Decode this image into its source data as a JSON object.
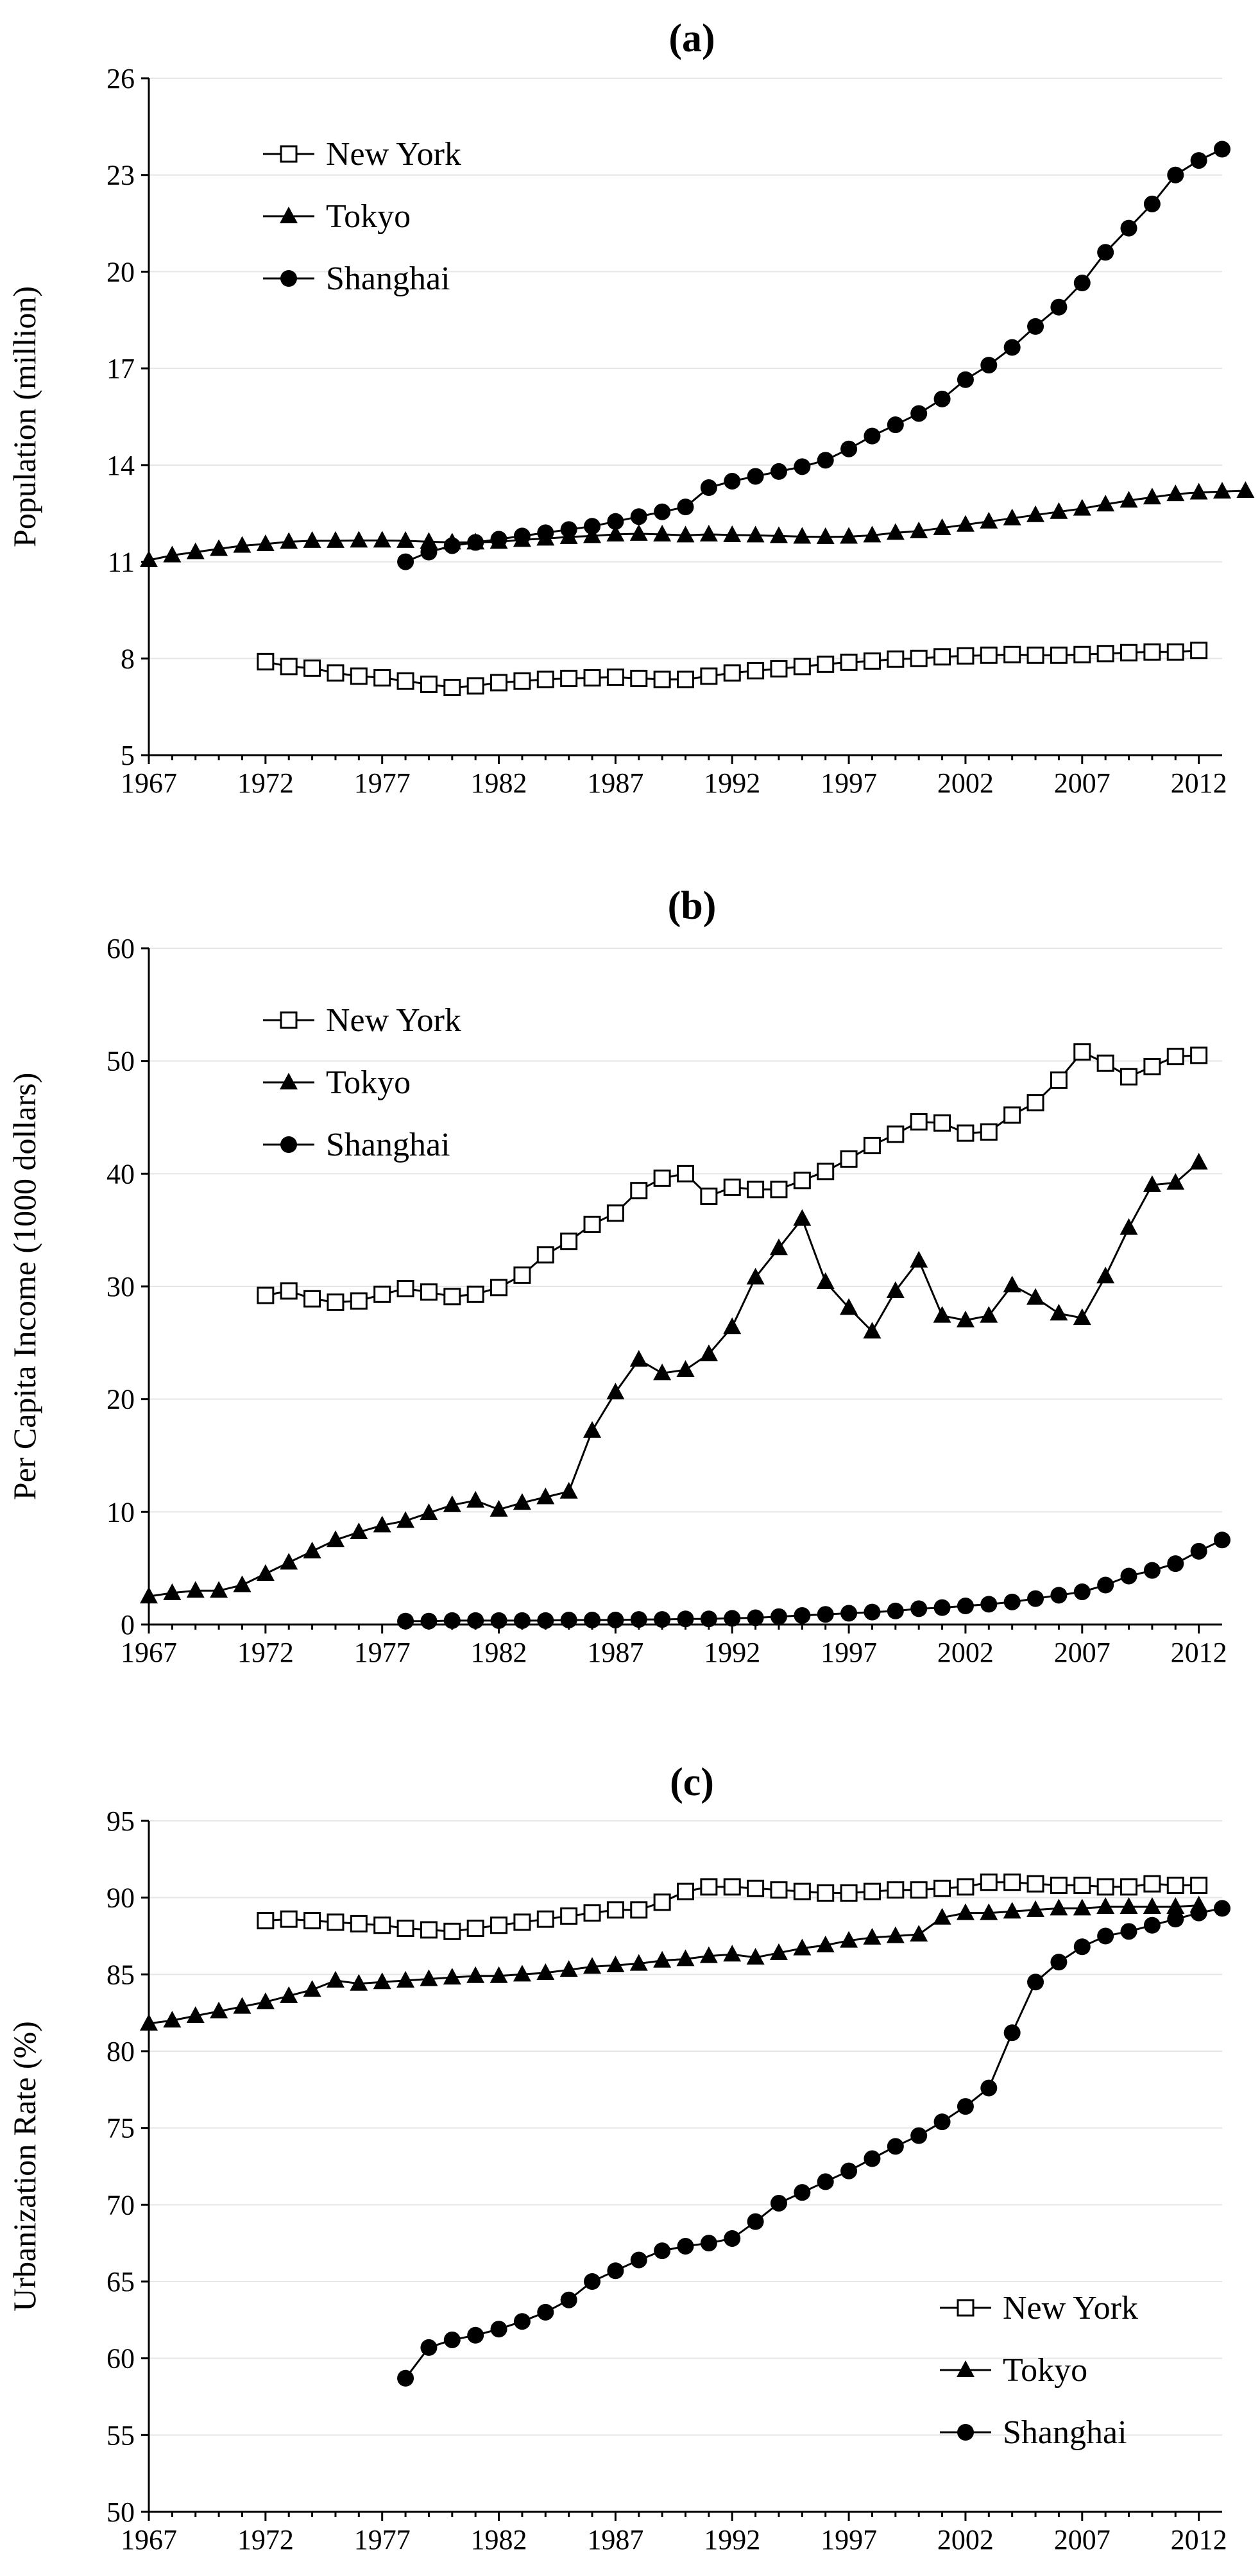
{
  "chart_data": [
    {
      "type": "line",
      "title": "(a)",
      "ylabel": "Population (million)",
      "xlabel": "",
      "ylim": [
        5,
        26
      ],
      "yticks": [
        5,
        8,
        11,
        14,
        17,
        20,
        23,
        26
      ],
      "xticks": [
        1967,
        1972,
        1977,
        1982,
        1987,
        1992,
        1997,
        2002,
        2007,
        2012
      ],
      "legend": [
        "New York",
        "Tokyo",
        "Shanghai"
      ],
      "series": [
        {
          "name": "New York",
          "marker": "square-open",
          "start": 1972,
          "values": [
            7.9,
            7.75,
            7.7,
            7.55,
            7.45,
            7.4,
            7.3,
            7.2,
            7.1,
            7.15,
            7.25,
            7.3,
            7.35,
            7.38,
            7.4,
            7.42,
            7.38,
            7.35,
            7.35,
            7.45,
            7.55,
            7.62,
            7.68,
            7.75,
            7.82,
            7.88,
            7.92,
            7.98,
            8.0,
            8.05,
            8.08,
            8.1,
            8.12,
            8.1,
            8.1,
            8.12,
            8.15,
            8.18,
            8.2,
            8.2,
            8.25
          ]
        },
        {
          "name": "Tokyo",
          "marker": "triangle",
          "start": 1967,
          "values": [
            11.05,
            11.2,
            11.3,
            11.4,
            11.5,
            11.55,
            11.62,
            11.65,
            11.65,
            11.66,
            11.66,
            11.65,
            11.62,
            11.6,
            11.6,
            11.62,
            11.68,
            11.72,
            11.77,
            11.8,
            11.85,
            11.87,
            11.85,
            11.82,
            11.85,
            11.83,
            11.82,
            11.8,
            11.78,
            11.77,
            11.78,
            11.82,
            11.9,
            11.95,
            12.05,
            12.15,
            12.25,
            12.35,
            12.45,
            12.55,
            12.65,
            12.78,
            12.9,
            13.0,
            13.1,
            13.15,
            13.18,
            13.2
          ]
        },
        {
          "name": "Shanghai",
          "marker": "circle",
          "start": 1978,
          "values": [
            11.0,
            11.3,
            11.5,
            11.6,
            11.7,
            11.8,
            11.9,
            12.0,
            12.1,
            12.25,
            12.4,
            12.55,
            12.7,
            13.3,
            13.5,
            13.65,
            13.8,
            13.95,
            14.15,
            14.5,
            14.9,
            15.25,
            15.6,
            16.05,
            16.65,
            17.1,
            17.65,
            18.3,
            18.9,
            19.65,
            20.6,
            21.35,
            22.1,
            23.0,
            23.45,
            23.8
          ]
        }
      ]
    },
    {
      "type": "line",
      "title": "(b)",
      "ylabel": "Per Capita Income (1000 dollars)",
      "xlabel": "",
      "ylim": [
        0,
        60
      ],
      "yticks": [
        0,
        10,
        20,
        30,
        40,
        50,
        60
      ],
      "xticks": [
        1967,
        1972,
        1977,
        1982,
        1987,
        1992,
        1997,
        2002,
        2007,
        2012
      ],
      "legend": [
        "New York",
        "Tokyo",
        "Shanghai"
      ],
      "series": [
        {
          "name": "New York",
          "marker": "square-open",
          "start": 1972,
          "values": [
            29.2,
            29.6,
            28.9,
            28.6,
            28.7,
            29.3,
            29.8,
            29.5,
            29.1,
            29.3,
            29.9,
            31.0,
            32.8,
            34.0,
            35.5,
            36.5,
            38.5,
            39.6,
            40.0,
            38.0,
            38.8,
            38.6,
            38.6,
            39.4,
            40.2,
            41.3,
            42.5,
            43.5,
            44.6,
            44.5,
            43.6,
            43.7,
            45.2,
            46.3,
            48.3,
            50.8,
            49.8,
            48.6,
            49.5,
            50.4,
            50.5
          ]
        },
        {
          "name": "Tokyo",
          "marker": "triangle",
          "start": 1967,
          "values": [
            2.5,
            2.8,
            3.0,
            3.0,
            3.5,
            4.5,
            5.5,
            6.5,
            7.5,
            8.2,
            8.8,
            9.2,
            9.9,
            10.6,
            11.0,
            10.2,
            10.8,
            11.3,
            11.8,
            17.2,
            20.6,
            23.5,
            22.3,
            22.6,
            24.0,
            26.4,
            30.8,
            33.4,
            36.0,
            30.4,
            28.1,
            26.0,
            29.6,
            32.3,
            27.4,
            27.0,
            27.4,
            30.1,
            29.0,
            27.6,
            27.2,
            30.9,
            35.2,
            39.0,
            39.2,
            41.0
          ]
        },
        {
          "name": "Shanghai",
          "marker": "circle",
          "start": 1978,
          "values": [
            0.3,
            0.3,
            0.35,
            0.35,
            0.35,
            0.35,
            0.35,
            0.4,
            0.4,
            0.4,
            0.45,
            0.45,
            0.5,
            0.5,
            0.55,
            0.6,
            0.7,
            0.8,
            0.9,
            1.0,
            1.1,
            1.2,
            1.4,
            1.5,
            1.65,
            1.8,
            2.0,
            2.3,
            2.6,
            2.9,
            3.5,
            4.3,
            4.8,
            5.4,
            6.5,
            7.5
          ]
        }
      ]
    },
    {
      "type": "line",
      "title": "(c)",
      "ylabel": "Urbanization Rate (%)",
      "xlabel": "",
      "ylim": [
        50,
        95
      ],
      "yticks": [
        50,
        55,
        60,
        65,
        70,
        75,
        80,
        85,
        90,
        95
      ],
      "xticks": [
        1967,
        1972,
        1977,
        1982,
        1987,
        1992,
        1997,
        2002,
        2007,
        2012
      ],
      "legend": [
        "New York",
        "Tokyo",
        "Shanghai"
      ],
      "series": [
        {
          "name": "New York",
          "marker": "square-open",
          "start": 1972,
          "values": [
            88.5,
            88.6,
            88.5,
            88.4,
            88.3,
            88.2,
            88.0,
            87.9,
            87.8,
            88.0,
            88.2,
            88.4,
            88.6,
            88.8,
            89.0,
            89.2,
            89.2,
            89.7,
            90.4,
            90.7,
            90.7,
            90.6,
            90.5,
            90.4,
            90.3,
            90.3,
            90.4,
            90.5,
            90.5,
            90.6,
            90.7,
            91.0,
            91.0,
            90.9,
            90.8,
            90.8,
            90.7,
            90.7,
            90.9,
            90.8,
            90.8
          ]
        },
        {
          "name": "Tokyo",
          "marker": "triangle",
          "start": 1967,
          "values": [
            81.8,
            82.0,
            82.3,
            82.6,
            82.9,
            83.2,
            83.6,
            84.0,
            84.6,
            84.4,
            84.5,
            84.6,
            84.7,
            84.8,
            84.9,
            84.9,
            85.0,
            85.1,
            85.3,
            85.5,
            85.6,
            85.7,
            85.9,
            86.0,
            86.2,
            86.3,
            86.1,
            86.4,
            86.7,
            86.9,
            87.2,
            87.4,
            87.5,
            87.6,
            88.7,
            89.0,
            89.0,
            89.1,
            89.2,
            89.3,
            89.3,
            89.4,
            89.4,
            89.4,
            89.4,
            89.5
          ]
        },
        {
          "name": "Shanghai",
          "marker": "circle",
          "start": 1978,
          "values": [
            58.7,
            60.7,
            61.2,
            61.5,
            61.9,
            62.4,
            63.0,
            63.8,
            65.0,
            65.7,
            66.4,
            67.0,
            67.3,
            67.5,
            67.8,
            68.9,
            70.1,
            70.8,
            71.5,
            72.2,
            73.0,
            73.8,
            74.5,
            75.4,
            76.4,
            77.6,
            81.2,
            84.5,
            85.8,
            86.8,
            87.5,
            87.8,
            88.2,
            88.6,
            89.0,
            89.3
          ]
        }
      ]
    }
  ]
}
